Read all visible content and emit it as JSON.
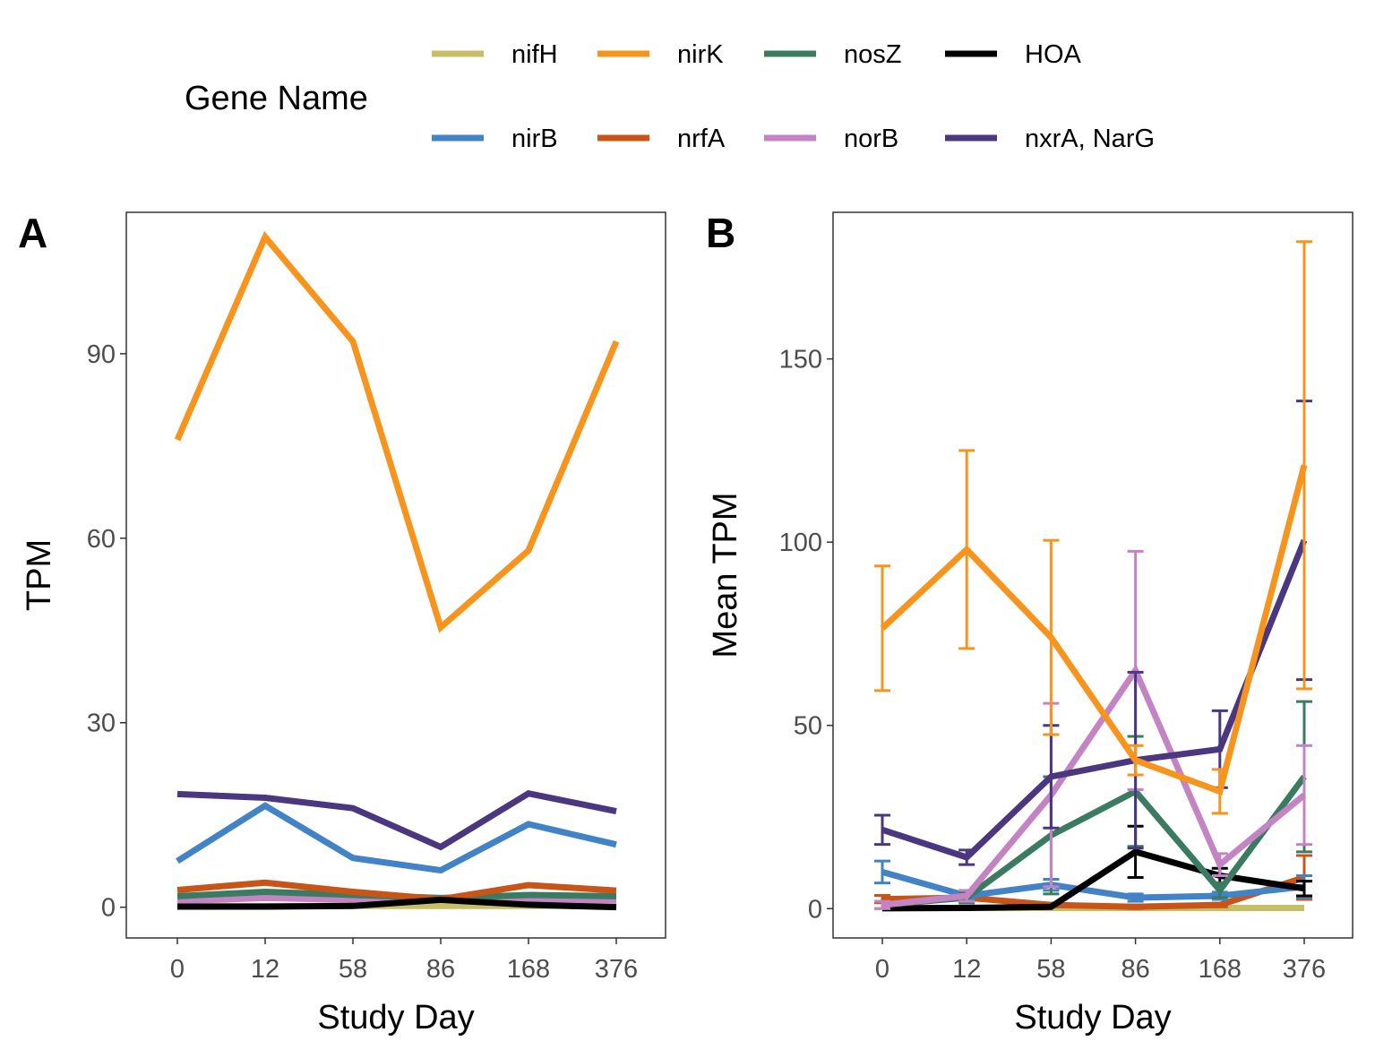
{
  "legend": {
    "title": "Gene Name",
    "entries": [
      {
        "name": "nifH",
        "color": "#C7BF66"
      },
      {
        "name": "nirK",
        "color": "#F7941D"
      },
      {
        "name": "nosZ",
        "color": "#3B7B62"
      },
      {
        "name": "HOA",
        "color": "#000000"
      },
      {
        "name": "nirB",
        "color": "#4282C6"
      },
      {
        "name": "nrfA",
        "color": "#C85417"
      },
      {
        "name": "norB",
        "color": "#C484C4"
      },
      {
        "name": "nxrA, NarG",
        "color": "#4B3680"
      }
    ]
  },
  "chart_data": [
    {
      "panel_label": "A",
      "type": "line",
      "xlabel": "Study Day",
      "ylabel": "TPM",
      "categories": [
        "0",
        "12",
        "58",
        "86",
        "168",
        "376"
      ],
      "ylim": [
        -5,
        113
      ],
      "yticks": [
        0,
        30,
        60,
        90
      ],
      "grid": false,
      "series": [
        {
          "name": "nifH",
          "color": "#C7BF66",
          "values": [
            0.2,
            0.2,
            0.2,
            0.2,
            0.2,
            0.2
          ]
        },
        {
          "name": "norB",
          "color": "#C484C4",
          "values": [
            1,
            1.5,
            1.2,
            1.3,
            1.2,
            1.1
          ]
        },
        {
          "name": "nosZ",
          "color": "#3B7B62",
          "values": [
            1.8,
            2.5,
            2,
            1.5,
            2,
            1.8
          ]
        },
        {
          "name": "nrfA",
          "color": "#C85417",
          "values": [
            2.8,
            4,
            2.5,
            1.3,
            3.6,
            2.7
          ]
        },
        {
          "name": "HOA",
          "color": "#000000",
          "values": [
            0.1,
            0.1,
            0.2,
            1.2,
            0.4,
            0
          ]
        },
        {
          "name": "nirB",
          "color": "#4282C6",
          "values": [
            7.5,
            16.5,
            8,
            6,
            13.5,
            10.2
          ]
        },
        {
          "name": "nxrA, NarG",
          "color": "#4B3680",
          "values": [
            18.4,
            17.8,
            16.1,
            9.8,
            18.5,
            15.6
          ]
        },
        {
          "name": "nirK",
          "color": "#F7941D",
          "values": [
            76,
            109,
            92,
            45.5,
            58,
            92
          ]
        }
      ]
    },
    {
      "panel_label": "B",
      "type": "line",
      "xlabel": "Study Day",
      "ylabel": "Mean TPM",
      "categories": [
        "0",
        "12",
        "58",
        "86",
        "168",
        "376"
      ],
      "ylim": [
        -8,
        190
      ],
      "yticks": [
        0,
        50,
        100,
        150
      ],
      "grid": false,
      "series": [
        {
          "name": "nifH",
          "color": "#C7BF66",
          "values": [
            0.2,
            0.2,
            0.2,
            0.2,
            0.2,
            0.2
          ],
          "err": [
            0,
            0,
            0,
            0,
            0,
            0
          ]
        },
        {
          "name": "nrfA",
          "color": "#C85417",
          "values": [
            2.6,
            3,
            1,
            0.5,
            1,
            8.5
          ],
          "err": [
            1,
            1,
            0.5,
            0.5,
            0.5,
            6
          ]
        },
        {
          "name": "nirB",
          "color": "#4282C6",
          "values": [
            10,
            3.5,
            6.5,
            3,
            3.5,
            6
          ],
          "err": [
            3,
            1,
            1.5,
            1,
            1,
            3
          ]
        },
        {
          "name": "HOA",
          "color": "#000000",
          "values": [
            0.1,
            0.2,
            0.5,
            15.5,
            9,
            5.5
          ],
          "err": [
            0,
            0,
            0,
            7,
            2,
            2
          ]
        },
        {
          "name": "nosZ",
          "color": "#3B7B62",
          "values": [
            1,
            3,
            20,
            32,
            5,
            36
          ],
          "err": [
            1,
            1.5,
            16,
            15,
            2,
            20.5
          ]
        },
        {
          "name": "norB",
          "color": "#C484C4",
          "values": [
            1,
            3.5,
            31,
            65,
            12,
            31
          ],
          "err": [
            1,
            1.5,
            25,
            32.5,
            3,
            13.5
          ]
        },
        {
          "name": "nxrA, NarG",
          "color": "#4B3680",
          "values": [
            21.5,
            14,
            36,
            40.5,
            43.5,
            100.5
          ],
          "err": [
            4,
            2,
            14,
            24,
            10.5,
            38
          ]
        },
        {
          "name": "nirK",
          "color": "#F7941D",
          "values": [
            76.5,
            98,
            74,
            40.5,
            32,
            121
          ],
          "err": [
            17,
            27,
            26.5,
            4,
            6,
            61
          ]
        }
      ]
    }
  ]
}
